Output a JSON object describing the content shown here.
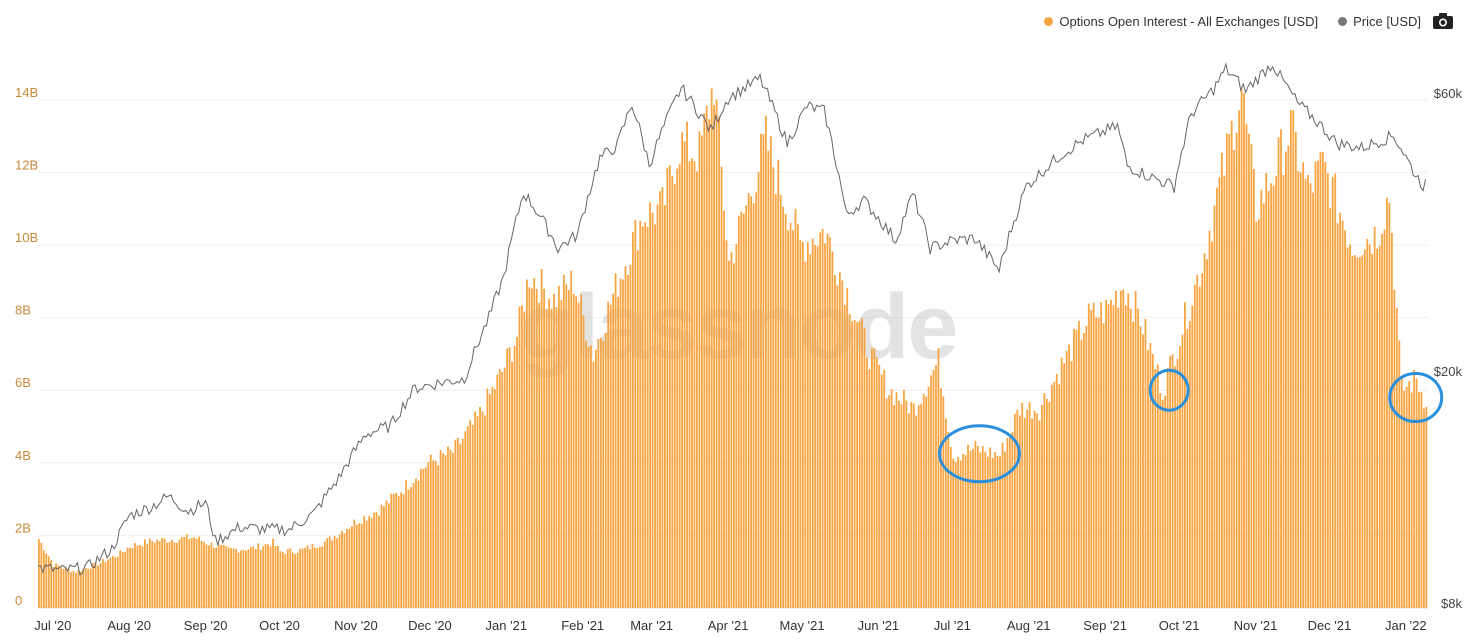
{
  "legend": {
    "oi_label": "Options Open Interest - All Exchanges [USD]",
    "price_label": "Price [USD]"
  },
  "watermark": "glassnode",
  "icons": {
    "camera": "camera-icon"
  },
  "colors": {
    "oi": "#f7a440",
    "price": "#666666",
    "left_axis_text": "#c9893a",
    "annotation": "#2b8fdd"
  },
  "chart_data": {
    "type": "bar",
    "title": "",
    "x_ticks": [
      "Jul '20",
      "Aug '20",
      "Sep '20",
      "Oct '20",
      "Nov '20",
      "Dec '20",
      "Jan '21",
      "Feb '21",
      "Mar '21",
      "Apr '21",
      "May '21",
      "Jun '21",
      "Jul '21",
      "Aug '21",
      "Sep '21",
      "Oct '21",
      "Nov '21",
      "Dec '21",
      "Jan '22"
    ],
    "y_left": {
      "ticks": [
        "0",
        "2B",
        "4B",
        "6B",
        "8B",
        "10B",
        "12B",
        "14B"
      ],
      "ylim": [
        0,
        14000000000
      ]
    },
    "y_right": {
      "ticks": [
        "$8k",
        "$20k",
        "$60k"
      ],
      "scale": "log",
      "ylim": [
        8000,
        60000
      ]
    },
    "grid": true,
    "legend_position": "top-right",
    "series": [
      {
        "name": "Options Open Interest - All Exchanges [USD]",
        "kind": "bar",
        "unit": "USD",
        "points": [
          [
            "2020-06-25",
            1900000000.0
          ],
          [
            "2020-07-01",
            1200000000.0
          ],
          [
            "2020-07-10",
            1000000000.0
          ],
          [
            "2020-07-20",
            1250000000.0
          ],
          [
            "2020-07-28",
            1500000000.0
          ],
          [
            "2020-08-01",
            1700000000.0
          ],
          [
            "2020-08-10",
            1850000000.0
          ],
          [
            "2020-08-20",
            1900000000.0
          ],
          [
            "2020-08-27",
            1950000000.0
          ],
          [
            "2020-09-01",
            1800000000.0
          ],
          [
            "2020-09-10",
            1600000000.0
          ],
          [
            "2020-09-20",
            1650000000.0
          ],
          [
            "2020-09-28",
            1800000000.0
          ],
          [
            "2020-10-01",
            1550000000.0
          ],
          [
            "2020-10-10",
            1600000000.0
          ],
          [
            "2020-10-20",
            1850000000.0
          ],
          [
            "2020-11-01",
            2400000000.0
          ],
          [
            "2020-11-10",
            2700000000.0
          ],
          [
            "2020-11-20",
            3300000000.0
          ],
          [
            "2020-11-30",
            4000000000.0
          ],
          [
            "2020-12-10",
            4300000000.0
          ],
          [
            "2020-12-20",
            5200000000.0
          ],
          [
            "2020-12-30",
            6500000000.0
          ],
          [
            "2021-01-05",
            7500000000.0
          ],
          [
            "2021-01-10",
            9200000000.0
          ],
          [
            "2021-01-20",
            8500000000.0
          ],
          [
            "2021-01-28",
            9000000000.0
          ],
          [
            "2021-02-05",
            7000000000.0
          ],
          [
            "2021-02-15",
            9000000000.0
          ],
          [
            "2021-02-25",
            10800000000.0
          ],
          [
            "2021-03-05",
            11000000000.0
          ],
          [
            "2021-03-12",
            12800000000.0
          ],
          [
            "2021-03-20",
            12500000000.0
          ],
          [
            "2021-03-26",
            14500000000.0
          ],
          [
            "2021-04-01",
            9500000000.0
          ],
          [
            "2021-04-10",
            11500000000.0
          ],
          [
            "2021-04-16",
            12900000000.0
          ],
          [
            "2021-04-20",
            12000000000.0
          ],
          [
            "2021-04-30",
            10000000000.0
          ],
          [
            "2021-05-10",
            10400000000.0
          ],
          [
            "2021-05-20",
            8500000000.0
          ],
          [
            "2021-05-28",
            7000000000.0
          ],
          [
            "2021-06-05",
            6000000000.0
          ],
          [
            "2021-06-15",
            5500000000.0
          ],
          [
            "2021-06-25",
            6800000000.0
          ],
          [
            "2021-07-01",
            4200000000.0
          ],
          [
            "2021-07-10",
            4400000000.0
          ],
          [
            "2021-07-20",
            4200000000.0
          ],
          [
            "2021-07-28",
            5500000000.0
          ],
          [
            "2021-08-05",
            5500000000.0
          ],
          [
            "2021-08-15",
            6800000000.0
          ],
          [
            "2021-08-25",
            8000000000.0
          ],
          [
            "2021-09-01",
            8200000000.0
          ],
          [
            "2021-09-08",
            8900000000.0
          ],
          [
            "2021-09-15",
            8000000000.0
          ],
          [
            "2021-09-24",
            6000000000.0
          ],
          [
            "2021-10-01",
            7500000000.0
          ],
          [
            "2021-10-10",
            9500000000.0
          ],
          [
            "2021-10-20",
            12500000000.0
          ],
          [
            "2021-10-26",
            14300000000.0
          ],
          [
            "2021-11-01",
            11000000000.0
          ],
          [
            "2021-11-08",
            12000000000.0
          ],
          [
            "2021-11-15",
            13200000000.0
          ],
          [
            "2021-11-22",
            11500000000.0
          ],
          [
            "2021-11-28",
            12200000000.0
          ],
          [
            "2021-12-03",
            11300000000.0
          ],
          [
            "2021-12-10",
            10000000000.0
          ],
          [
            "2021-12-20",
            10300000000.0
          ],
          [
            "2021-12-25",
            11400000000.0
          ],
          [
            "2021-12-30",
            6000000000.0
          ],
          [
            "2022-01-05",
            6300000000.0
          ],
          [
            "2022-01-08",
            5800000000.0
          ]
        ]
      },
      {
        "name": "Price [USD]",
        "kind": "line",
        "unit": "USD",
        "points": [
          [
            "2020-06-25",
            9200
          ],
          [
            "2020-07-05",
            9100
          ],
          [
            "2020-07-15",
            9200
          ],
          [
            "2020-07-25",
            9900
          ],
          [
            "2020-08-01",
            11300
          ],
          [
            "2020-08-10",
            11700
          ],
          [
            "2020-08-17",
            12200
          ],
          [
            "2020-08-25",
            11500
          ],
          [
            "2020-09-01",
            11900
          ],
          [
            "2020-09-05",
            10200
          ],
          [
            "2020-09-15",
            10800
          ],
          [
            "2020-09-25",
            10700
          ],
          [
            "2020-10-05",
            10700
          ],
          [
            "2020-10-15",
            11400
          ],
          [
            "2020-10-25",
            13100
          ],
          [
            "2020-11-05",
            15600
          ],
          [
            "2020-11-15",
            16100
          ],
          [
            "2020-11-25",
            18700
          ],
          [
            "2020-12-05",
            19100
          ],
          [
            "2020-12-15",
            19400
          ],
          [
            "2020-12-25",
            24700
          ],
          [
            "2020-12-31",
            29000
          ],
          [
            "2021-01-08",
            40500
          ],
          [
            "2021-01-15",
            36800
          ],
          [
            "2021-01-22",
            32500
          ],
          [
            "2021-01-30",
            34300
          ],
          [
            "2021-02-08",
            46400
          ],
          [
            "2021-02-15",
            48700
          ],
          [
            "2021-02-21",
            57500
          ],
          [
            "2021-02-28",
            45200
          ],
          [
            "2021-03-13",
            61200
          ],
          [
            "2021-03-25",
            51700
          ],
          [
            "2021-04-01",
            58800
          ],
          [
            "2021-04-14",
            63500
          ],
          [
            "2021-04-25",
            49100
          ],
          [
            "2021-05-03",
            57000
          ],
          [
            "2021-05-10",
            55800
          ],
          [
            "2021-05-19",
            37000
          ],
          [
            "2021-05-26",
            39300
          ],
          [
            "2021-06-08",
            33500
          ],
          [
            "2021-06-15",
            40200
          ],
          [
            "2021-06-22",
            32500
          ],
          [
            "2021-07-01",
            33500
          ],
          [
            "2021-07-10",
            33800
          ],
          [
            "2021-07-20",
            29800
          ],
          [
            "2021-07-31",
            41500
          ],
          [
            "2021-08-14",
            47000
          ],
          [
            "2021-08-23",
            49800
          ],
          [
            "2021-09-06",
            52600
          ],
          [
            "2021-09-10",
            45000
          ],
          [
            "2021-09-20",
            43000
          ],
          [
            "2021-09-29",
            41500
          ],
          [
            "2021-10-06",
            55300
          ],
          [
            "2021-10-15",
            60900
          ],
          [
            "2021-10-20",
            66000
          ],
          [
            "2021-10-28",
            60600
          ],
          [
            "2021-11-08",
            67500
          ],
          [
            "2021-11-10",
            64900
          ],
          [
            "2021-11-18",
            57700
          ],
          [
            "2021-11-26",
            53600
          ],
          [
            "2021-12-04",
            49200
          ],
          [
            "2021-12-14",
            48300
          ],
          [
            "2021-12-27",
            50700
          ],
          [
            "2022-01-05",
            43400
          ],
          [
            "2022-01-08",
            41700
          ],
          [
            "2022-01-10",
            42000
          ]
        ]
      }
    ],
    "annotations": [
      {
        "shape": "ellipse",
        "x_center": "2021-07-12",
        "y_center": 4250000000.0
      },
      {
        "shape": "ellipse",
        "x_center": "2021-09-27",
        "y_center": 6000000000.0
      },
      {
        "shape": "ellipse",
        "x_center": "2022-01-05",
        "y_center": 5800000000.0
      }
    ]
  }
}
